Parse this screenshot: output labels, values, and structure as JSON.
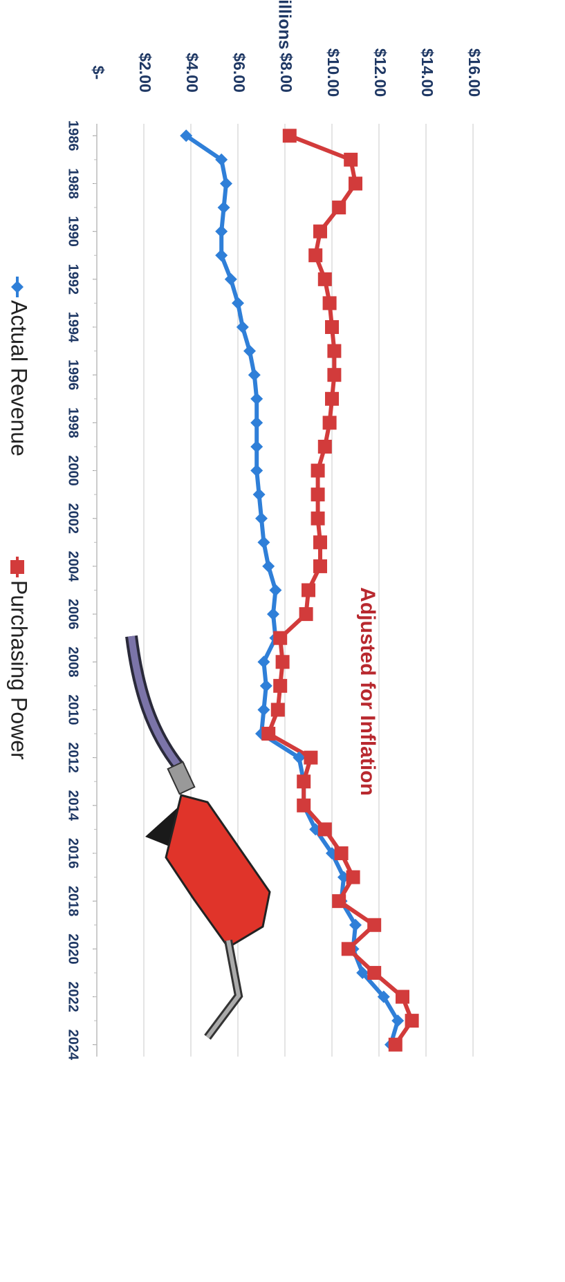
{
  "chart_data": {
    "type": "line",
    "y_label": "Millions",
    "annotation": "Adjusted for Inflation",
    "x": [
      1986,
      1987,
      1988,
      1989,
      1990,
      1991,
      1992,
      1993,
      1994,
      1995,
      1996,
      1997,
      1998,
      1999,
      2000,
      2001,
      2002,
      2003,
      2004,
      2005,
      2006,
      2007,
      2008,
      2009,
      2010,
      2011,
      2012,
      2013,
      2014,
      2015,
      2016,
      2017,
      2018,
      2019,
      2020,
      2021,
      2022,
      2023,
      2024
    ],
    "series": [
      {
        "name": "Actual Revenue",
        "color": "#2f7fd8",
        "marker": "diamond",
        "values": [
          3.8,
          5.3,
          5.5,
          5.4,
          5.3,
          5.3,
          5.7,
          6.0,
          6.2,
          6.5,
          6.7,
          6.8,
          6.8,
          6.8,
          6.8,
          6.9,
          7.0,
          7.1,
          7.3,
          7.6,
          7.5,
          7.6,
          7.1,
          7.2,
          7.1,
          7.0,
          8.6,
          8.8,
          8.8,
          9.3,
          10.0,
          10.5,
          10.4,
          11.0,
          10.9,
          11.3,
          12.2,
          12.8,
          12.5
        ]
      },
      {
        "name": "Purchasing Power",
        "color": "#d23b3b",
        "marker": "square",
        "values": [
          8.2,
          10.8,
          11.0,
          10.3,
          9.5,
          9.3,
          9.7,
          9.9,
          10.0,
          10.1,
          10.1,
          10.0,
          9.9,
          9.7,
          9.4,
          9.4,
          9.4,
          9.5,
          9.5,
          9.0,
          8.9,
          7.8,
          7.9,
          7.8,
          7.7,
          7.3,
          9.1,
          8.8,
          8.8,
          9.7,
          10.4,
          10.9,
          10.3,
          11.8,
          10.7,
          11.8,
          13.0,
          13.4,
          12.7
        ]
      }
    ],
    "xlim": [
      1985.5,
      2024.5
    ],
    "xticks": [
      1986,
      1988,
      1990,
      1992,
      1994,
      1996,
      1998,
      2000,
      2002,
      2004,
      2006,
      2008,
      2010,
      2012,
      2014,
      2016,
      2018,
      2020,
      2022,
      2024
    ],
    "ylim": [
      0,
      16
    ],
    "yticks": [
      {
        "value": 0,
        "label": "$-"
      },
      {
        "value": 2,
        "label": "$2.00"
      },
      {
        "value": 4,
        "label": "$4.00"
      },
      {
        "value": 6,
        "label": "$6.00"
      },
      {
        "value": 8,
        "label": "$8.00"
      },
      {
        "value": 10,
        "label": "$10.00"
      },
      {
        "value": 12,
        "label": "$12.00"
      },
      {
        "value": 14,
        "label": "$14.00"
      },
      {
        "value": 16,
        "label": "$16.00"
      }
    ],
    "grid": true,
    "legend": "bottom"
  }
}
